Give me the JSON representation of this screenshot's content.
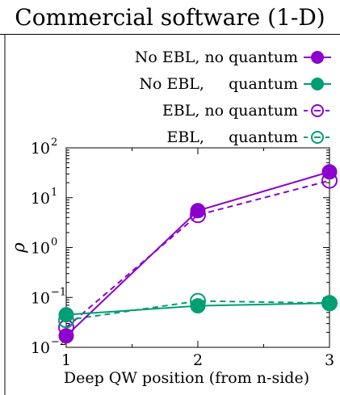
{
  "panel_title": "Commercial software (1-D)",
  "colors": {
    "purple": "#8B00CC",
    "green": "#009E73",
    "axis": "#000000"
  },
  "chart_data": {
    "type": "line",
    "title": "Commercial software (1-D)",
    "xlabel": "Deep QW position (from n-side)",
    "ylabel": "ρ",
    "x": [
      1,
      2,
      3
    ],
    "xlim": [
      1,
      3
    ],
    "ylim": [
      0.01,
      100
    ],
    "yscale": "log",
    "xticks": [
      "1",
      "2",
      "3"
    ],
    "yticks": [
      "10",
      "10",
      "10",
      "10",
      "10"
    ],
    "ytick_exponents": [
      "−2",
      "−1",
      "0",
      "1",
      "2"
    ],
    "ytick_values": [
      0.01,
      0.1,
      1,
      10,
      100
    ],
    "legend_position": "top-right",
    "series": [
      {
        "name": "No EBL, no quantum",
        "legend_label": "No EBL, no quantum",
        "values": [
          0.017,
          5.5,
          33
        ],
        "color": "#8B00CC",
        "dashed": false,
        "filled": true
      },
      {
        "name": "No EBL, quantum",
        "legend_label": "No EBL,     quantum",
        "values": [
          0.045,
          0.068,
          0.077
        ],
        "color": "#009E73",
        "dashed": false,
        "filled": true
      },
      {
        "name": "EBL, no quantum",
        "legend_label": "EBL, no quantum",
        "values": [
          0.025,
          4.5,
          22
        ],
        "color": "#8B00CC",
        "dashed": true,
        "filled": false
      },
      {
        "name": "EBL, quantum",
        "legend_label": "EBL,     quantum",
        "values": [
          0.035,
          0.085,
          0.077
        ],
        "color": "#009E73",
        "dashed": true,
        "filled": false
      }
    ]
  }
}
